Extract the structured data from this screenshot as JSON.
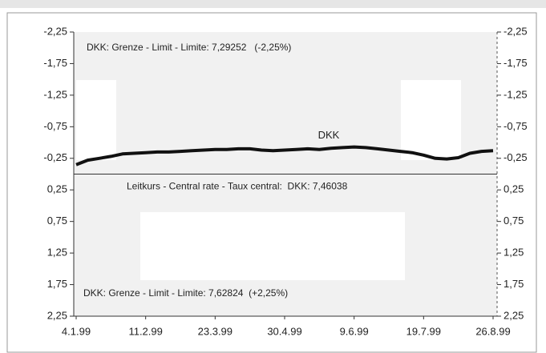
{
  "chart_data": {
    "type": "line",
    "categories": [
      "4.1.99",
      null,
      null,
      null,
      null,
      null,
      "11.2.99",
      null,
      null,
      null,
      null,
      null,
      "23.3.99",
      null,
      null,
      null,
      null,
      null,
      "30.4.99",
      null,
      null,
      null,
      null,
      null,
      "9.6.99",
      null,
      null,
      null,
      null,
      null,
      "19.7.99",
      null,
      null,
      null,
      null,
      null,
      "26.8.99"
    ],
    "series": [
      {
        "name": "DKK",
        "color": "#111111",
        "values": [
          -0.15,
          -0.22,
          -0.25,
          -0.28,
          -0.32,
          -0.33,
          -0.34,
          -0.35,
          -0.35,
          -0.36,
          -0.37,
          -0.38,
          -0.39,
          -0.39,
          -0.4,
          -0.4,
          -0.38,
          -0.37,
          -0.38,
          -0.39,
          -0.4,
          -0.39,
          -0.41,
          -0.42,
          -0.43,
          -0.42,
          -0.4,
          -0.38,
          -0.36,
          -0.34,
          -0.3,
          -0.25,
          -0.24,
          -0.26,
          -0.33,
          -0.36,
          -0.37
        ]
      }
    ],
    "ylim": [
      -2.25,
      2.25
    ],
    "y_inverted": true,
    "yticks": [
      {
        "value": -2.25,
        "label": "-2,25"
      },
      {
        "value": -1.75,
        "label": "-1,75"
      },
      {
        "value": -1.25,
        "label": "-1,25"
      },
      {
        "value": -0.75,
        "label": "-0,75"
      },
      {
        "value": -0.25,
        "label": "-0,25"
      },
      {
        "value": 0.25,
        "label": "0,25"
      },
      {
        "value": 0.75,
        "label": "0,75"
      },
      {
        "value": 1.25,
        "label": "1,25"
      },
      {
        "value": 1.75,
        "label": "1,75"
      },
      {
        "value": 2.25,
        "label": "2,25"
      }
    ],
    "annotations": [
      "DKK: Grenze - Limit - Limite: 7,29252   (-2,25%)",
      "Leitkurs - Central rate - Taux central:  DKK: 7,46038",
      "DKK: Grenze - Limit - Limite: 7,62824  (+2,25%)"
    ]
  }
}
